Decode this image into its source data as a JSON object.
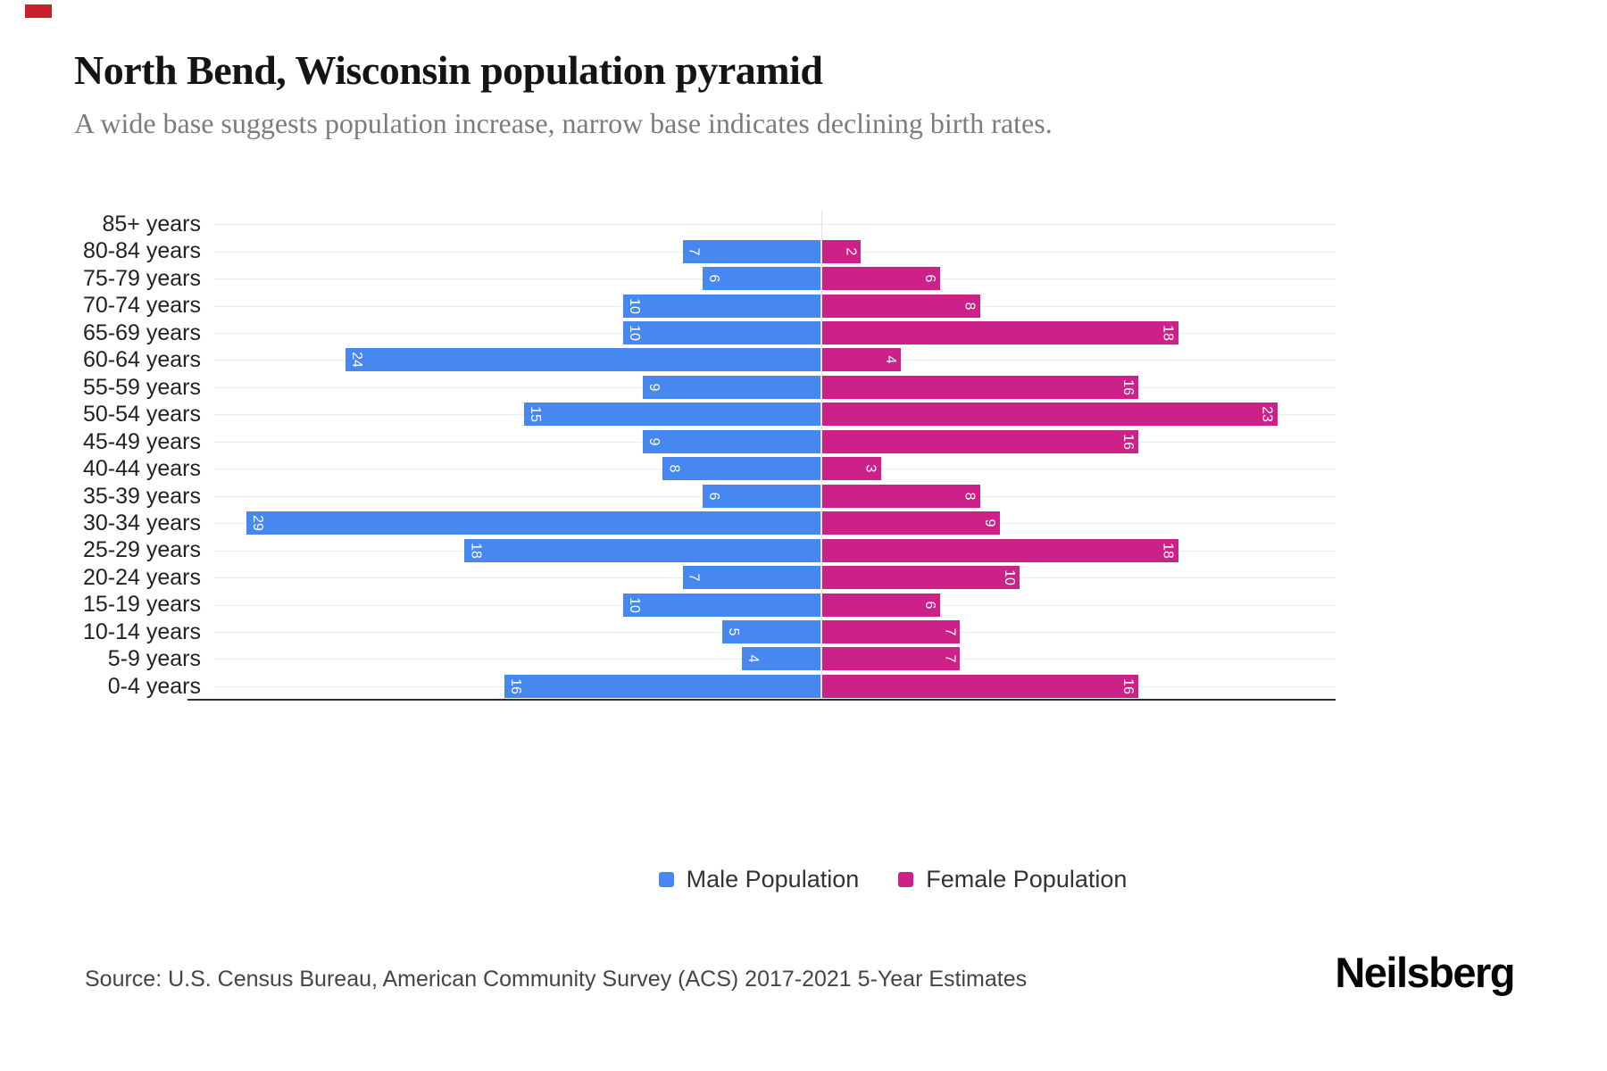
{
  "decor": {
    "corner_marker_color": "#c8202c"
  },
  "header": {
    "title": "North Bend, Wisconsin population pyramid",
    "subtitle": "A wide base suggests population increase, narrow base indicates declining birth rates."
  },
  "chart_data": {
    "type": "bar",
    "variant": "population_pyramid",
    "title": "North Bend, Wisconsin population pyramid",
    "categories": [
      "85+ years",
      "80-84 years",
      "75-79 years",
      "70-74 years",
      "65-69 years",
      "60-64 years",
      "55-59 years",
      "50-54 years",
      "45-49 years",
      "40-44 years",
      "35-39 years",
      "30-34 years",
      "25-29 years",
      "20-24 years",
      "15-19 years",
      "10-14 years",
      "5-9 years",
      "0-4 years"
    ],
    "series": [
      {
        "name": "Male Population",
        "color": "#4687F0",
        "direction": "left",
        "values": [
          0,
          7,
          6,
          10,
          10,
          24,
          9,
          15,
          9,
          8,
          6,
          29,
          18,
          7,
          10,
          5,
          4,
          16
        ]
      },
      {
        "name": "Female Population",
        "color": "#CC2189",
        "direction": "right",
        "values": [
          0,
          2,
          6,
          8,
          18,
          4,
          16,
          23,
          16,
          3,
          8,
          9,
          18,
          10,
          6,
          7,
          7,
          16
        ]
      }
    ],
    "value_labels": "inside bar ends, rotated 90deg, white",
    "grid": true,
    "legend_position": "bottom"
  },
  "legend": {
    "items": [
      {
        "label": "Male Population",
        "color": "#4687F0"
      },
      {
        "label": "Female Population",
        "color": "#CC2189"
      }
    ]
  },
  "footer": {
    "source": "Source: U.S. Census Bureau, American Community Survey (ACS) 2017-2021 5-Year Estimates",
    "brand": "Neilsberg"
  }
}
